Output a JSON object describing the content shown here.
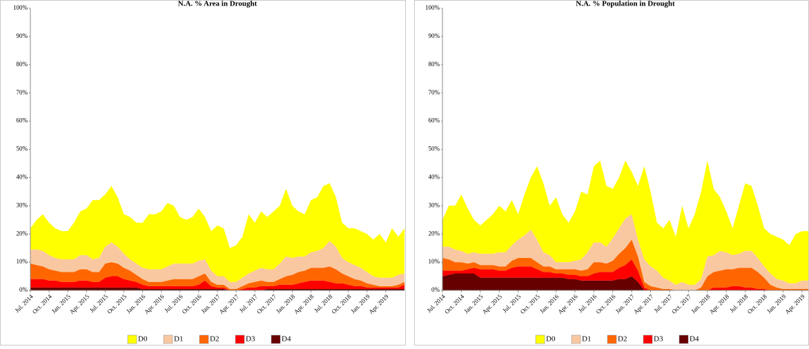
{
  "chart_data": [
    {
      "type": "area",
      "stacked": true,
      "title": "N.A. % Area in Drought",
      "categories": [
        "Jul. 2014",
        null,
        null,
        "Oct. 2014",
        null,
        null,
        "Jan. 2015",
        null,
        null,
        "Apr. 2015",
        null,
        null,
        "Jul. 2015",
        null,
        null,
        "Oct. 2015",
        null,
        null,
        "Jan. 2016",
        null,
        null,
        "Apr. 2016",
        null,
        null,
        "Jul. 2016",
        null,
        null,
        "Oct. 2016",
        null,
        null,
        "Jan. 2017",
        null,
        null,
        "Apr. 2017",
        null,
        null,
        "Jul. 2017",
        null,
        null,
        "Oct. 2017",
        null,
        null,
        "Jan. 2018",
        null,
        null,
        "Apr. 2018",
        null,
        null,
        "Jul. 2018",
        null,
        null,
        "Oct. 2018",
        null,
        null,
        "Jan. 2019",
        null,
        null,
        "Apr. 2019",
        null,
        null,
        null
      ],
      "series": [
        {
          "name": "D4",
          "color": "#660000",
          "values": [
            1,
            1,
            1,
            1,
            1,
            1,
            1,
            1,
            1,
            1,
            1,
            1,
            1,
            1,
            1,
            1,
            1,
            1,
            0.5,
            0.5,
            0.5,
            0.5,
            0.5,
            0.5,
            0.5,
            0.5,
            0.5,
            0.5,
            0.5,
            0.5,
            0.5,
            0.5,
            0,
            0,
            0,
            0,
            0,
            0,
            0.5,
            0.5,
            0.5,
            0.5,
            0.5,
            0.5,
            0.5,
            0.5,
            0.5,
            0.5,
            0.5,
            0.5,
            0.5,
            0.5,
            0.5,
            0.5,
            0.5,
            0.5,
            0.5,
            0.5,
            0.5,
            0.5,
            0.5
          ]
        },
        {
          "name": "D3",
          "color": "#ff0000",
          "values": [
            3,
            3,
            3,
            2.5,
            2.5,
            2,
            2,
            2,
            2.5,
            2.5,
            2,
            2,
            3.5,
            4,
            4,
            3,
            2.5,
            2,
            1.5,
            1,
            1,
            1,
            1,
            1,
            1,
            1,
            1,
            1.5,
            3,
            1,
            0.5,
            0.5,
            0,
            0,
            0.5,
            1,
            1,
            1.5,
            1,
            1,
            1.5,
            1.5,
            1.5,
            2,
            2.5,
            3,
            3,
            3,
            2.5,
            2,
            2,
            1.5,
            1,
            1,
            0.5,
            0.5,
            0.5,
            0.5,
            0.5,
            0.5,
            1.5
          ]
        },
        {
          "name": "D2",
          "color": "#ff6600",
          "values": [
            5.5,
            5,
            4.5,
            4,
            3.5,
            3.5,
            3.5,
            3.5,
            4,
            4,
            3.5,
            3.5,
            5,
            5,
            4.5,
            4,
            3.5,
            2.5,
            2,
            1.5,
            1.5,
            1.5,
            2,
            2.5,
            2.5,
            2.5,
            2.5,
            3,
            2.5,
            1.5,
            1,
            1,
            0.5,
            0.5,
            1,
            1.5,
            2,
            2,
            1.5,
            1.5,
            2,
            3,
            3.5,
            4,
            4,
            4.5,
            4.5,
            4.5,
            5.5,
            5,
            3.5,
            3,
            2.5,
            2,
            1.5,
            1,
            0.5,
            0.5,
            0.5,
            1,
            1
          ]
        },
        {
          "name": "D1",
          "color": "#fac8a0",
          "values": [
            5,
            5.5,
            5.5,
            5,
            4.5,
            4.5,
            4.5,
            4.5,
            5,
            5,
            4.5,
            5,
            6,
            7,
            6,
            5,
            4,
            4,
            4,
            4.5,
            4.5,
            4.5,
            5,
            5.5,
            5.5,
            5.5,
            5.5,
            5.5,
            5,
            4,
            3,
            3,
            2.5,
            2.5,
            3,
            3.5,
            4,
            4.5,
            4.5,
            4.5,
            5.5,
            7,
            6,
            5.5,
            5,
            5.5,
            6,
            7,
            9,
            8,
            5.5,
            5,
            5,
            4.5,
            4,
            3,
            3,
            3,
            3,
            3.5,
            3
          ]
        },
        {
          "name": "D0",
          "color": "#ffff00",
          "values": [
            7.5,
            10.5,
            13,
            11.5,
            10.5,
            10,
            10,
            13,
            15.5,
            16.5,
            21,
            20.5,
            18.5,
            20,
            17.5,
            14,
            15,
            14.5,
            16,
            19.5,
            19.5,
            20.5,
            22.5,
            20.5,
            16.5,
            15.5,
            16.5,
            18.5,
            15,
            14,
            18,
            17,
            12,
            13,
            14.5,
            21,
            17,
            20,
            18.5,
            20.5,
            20.5,
            24,
            18.5,
            16,
            15,
            18.5,
            19,
            22,
            20.5,
            17.5,
            12.5,
            12,
            13,
            13,
            13.5,
            13,
            15.5,
            12.5,
            17.5,
            13.5,
            16
          ]
        }
      ],
      "legend_order": [
        "D0",
        "D1",
        "D2",
        "D3",
        "D4"
      ],
      "ylim": [
        0,
        100
      ],
      "yticks": [
        {
          "value": 0,
          "label": "0%"
        },
        {
          "value": 10,
          "label": "10%"
        },
        {
          "value": 20,
          "label": "20%"
        },
        {
          "value": 30,
          "label": "30%"
        },
        {
          "value": 40,
          "label": "40%"
        },
        {
          "value": 50,
          "label": "50%"
        },
        {
          "value": 60,
          "label": "60%"
        },
        {
          "value": 70,
          "label": "70%"
        },
        {
          "value": 80,
          "label": "80%"
        },
        {
          "value": 90,
          "label": "90%"
        },
        {
          "value": 100,
          "label": "100%"
        }
      ],
      "grid": false,
      "legend": "bottom"
    },
    {
      "type": "area",
      "stacked": true,
      "title": "N.A. % Population in Drought",
      "categories": [
        "Jul. 2014",
        null,
        null,
        "Oct. 2014",
        null,
        null,
        "Jan. 2015",
        null,
        null,
        "Apr. 2015",
        null,
        null,
        "Jul. 2015",
        null,
        null,
        "Oct. 2015",
        null,
        null,
        "Jan. 2016",
        null,
        null,
        "Apr. 2016",
        null,
        null,
        "Jul. 2016",
        null,
        null,
        "Oct. 2016",
        null,
        null,
        "Jan. 2017",
        null,
        null,
        "Apr. 2017",
        null,
        null,
        "Jul. 2017",
        null,
        null,
        "Oct. 2017",
        null,
        null,
        "Jan. 2018",
        null,
        null,
        "Apr. 2018",
        null,
        null,
        "Jul. 2018",
        null,
        null,
        "Oct. 2018",
        null,
        null,
        "Jan. 2019",
        null,
        null,
        "Apr. 2019",
        null
      ],
      "series": [
        {
          "name": "D4",
          "color": "#660000",
          "values": [
            5,
            5.5,
            6,
            6,
            6,
            6,
            4.5,
            4.5,
            4.5,
            4.5,
            4.5,
            4.5,
            4.5,
            4.5,
            4.5,
            4.5,
            4.5,
            4.5,
            4.5,
            4.5,
            4,
            4,
            3.5,
            3.5,
            3.5,
            3.5,
            3.5,
            3.5,
            4,
            4,
            5,
            3,
            0,
            0,
            0,
            0,
            0,
            0,
            0,
            0,
            0,
            0,
            0,
            0,
            0,
            0,
            0,
            0,
            0,
            0,
            0,
            0,
            0,
            0,
            0,
            0,
            0,
            0,
            0
          ]
        },
        {
          "name": "D3",
          "color": "#ff0000",
          "values": [
            2,
            1.5,
            1,
            1,
            1.5,
            2,
            3,
            3,
            3,
            2.5,
            2.5,
            3.5,
            4,
            4,
            4,
            3,
            2,
            2,
            1.5,
            1.5,
            1.5,
            1.5,
            1.5,
            1.5,
            2.5,
            3,
            3,
            3,
            4,
            5,
            6,
            4,
            1,
            0,
            0,
            0,
            0,
            0,
            0,
            0,
            0,
            0,
            0,
            1,
            1,
            1,
            1.5,
            1.5,
            1,
            1,
            0.5,
            0.5,
            0,
            0,
            0,
            0,
            0,
            0,
            0
          ]
        },
        {
          "name": "D2",
          "color": "#ff6600",
          "values": [
            4.5,
            4,
            3,
            3,
            2,
            2,
            1.5,
            1.5,
            1.5,
            1.5,
            1.5,
            2.5,
            3,
            3,
            3,
            2.5,
            2,
            2,
            1.5,
            1.5,
            2,
            2,
            2,
            2.5,
            4,
            3.5,
            3,
            4,
            5,
            6,
            7,
            5,
            2,
            1.5,
            1,
            0.5,
            0.5,
            0,
            0,
            0,
            0,
            1,
            5,
            5.5,
            6,
            6.5,
            6,
            6.5,
            7,
            7,
            6,
            4,
            2,
            1,
            0.5,
            0.5,
            0.5,
            0.5,
            0.5
          ]
        },
        {
          "name": "D1",
          "color": "#fac8a0",
          "values": [
            4,
            4.5,
            4.5,
            4,
            3.5,
            3.5,
            4,
            4,
            4,
            5,
            5,
            5.5,
            6.5,
            8,
            10,
            8,
            5,
            4,
            2.5,
            2.5,
            2.5,
            3,
            4,
            6,
            7,
            7,
            6,
            8,
            9,
            10.5,
            9,
            6,
            8,
            7,
            6,
            4,
            3,
            2,
            3,
            2,
            2,
            3,
            7,
            6,
            7,
            6,
            5,
            5,
            6,
            6,
            5,
            4,
            4,
            3,
            3,
            2,
            2,
            3,
            3
          ]
        },
        {
          "name": "D0",
          "color": "#ffff00",
          "values": [
            9.5,
            14.5,
            15.5,
            20,
            16,
            11.5,
            10,
            12,
            14,
            16.5,
            14.5,
            16,
            9,
            14.5,
            18.5,
            26,
            24.5,
            17.5,
            23,
            17,
            14,
            17.5,
            24,
            20.5,
            27,
            29,
            21.5,
            17.5,
            18,
            20.5,
            15,
            19,
            33,
            26.5,
            17,
            17.5,
            21.5,
            17,
            27,
            20,
            25,
            31,
            34,
            23.5,
            19,
            14.5,
            9.5,
            17,
            24,
            23,
            18.5,
            13.5,
            14,
            15,
            14.5,
            13.5,
            17.5,
            17.5,
            17.5
          ]
        }
      ],
      "legend_order": [
        "D0",
        "D1",
        "D2",
        "D3",
        "D4"
      ],
      "ylim": [
        0,
        100
      ],
      "yticks": [
        {
          "value": 0,
          "label": "0%"
        },
        {
          "value": 10,
          "label": "10%"
        },
        {
          "value": 20,
          "label": "20%"
        },
        {
          "value": 30,
          "label": "30%"
        },
        {
          "value": 40,
          "label": "40%"
        },
        {
          "value": 50,
          "label": "50%"
        },
        {
          "value": 60,
          "label": "60%"
        },
        {
          "value": 70,
          "label": "70%"
        },
        {
          "value": 80,
          "label": "80%"
        },
        {
          "value": 90,
          "label": "90%"
        },
        {
          "value": 100,
          "label": "100%"
        }
      ],
      "grid": false,
      "legend": "bottom"
    }
  ]
}
